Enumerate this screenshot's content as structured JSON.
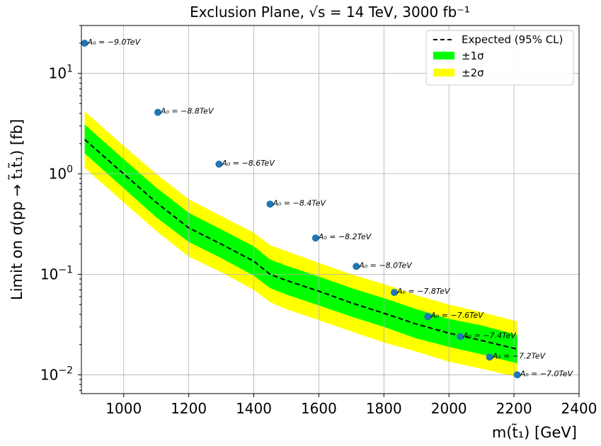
{
  "chart_data": {
    "type": "scatter",
    "title": "Exclusion Plane, √s = 14 TeV, 3000 fb⁻¹",
    "xlabel": "m(t̃₁) [GeV]",
    "ylabel": "Limit on σ(pp → t̃₁t̃₁) [fb]",
    "xlim": [
      870,
      2400
    ],
    "ylim": [
      0.0065,
      30
    ],
    "yscale": "log",
    "grid": true,
    "legend_position": "top-right",
    "x_ticks": [
      "1000",
      "1200",
      "1400",
      "1600",
      "1800",
      "2000",
      "2200",
      "2400"
    ],
    "y_ticks": [
      {
        "value": 0.01,
        "base": "10",
        "exp": "−2"
      },
      {
        "value": 0.1,
        "base": "10",
        "exp": "−1"
      },
      {
        "value": 1,
        "base": "10",
        "exp": "0"
      },
      {
        "value": 10,
        "base": "10",
        "exp": "1"
      }
    ],
    "legend": [
      {
        "label": "Expected (95% CL)",
        "style": "dashed",
        "color": "#000000"
      },
      {
        "label": "±1σ",
        "style": "fill",
        "color": "#00ff00"
      },
      {
        "label": "±2σ",
        "style": "fill",
        "color": "#ffff00"
      }
    ],
    "expected": {
      "x": [
        880,
        1000,
        1100,
        1200,
        1300,
        1400,
        1450,
        1500,
        1600,
        1700,
        1800,
        1900,
        2000,
        2100,
        2210
      ],
      "y": [
        2.2,
        1.0,
        0.52,
        0.29,
        0.2,
        0.135,
        0.1,
        0.087,
        0.068,
        0.052,
        0.041,
        0.032,
        0.026,
        0.022,
        0.018
      ]
    },
    "band_1sigma": {
      "x": [
        880,
        1000,
        1100,
        1200,
        1300,
        1400,
        1450,
        1500,
        1600,
        1700,
        1800,
        1900,
        2000,
        2100,
        2210
      ],
      "lower": [
        1.6,
        0.72,
        0.37,
        0.21,
        0.145,
        0.097,
        0.073,
        0.063,
        0.049,
        0.038,
        0.03,
        0.023,
        0.019,
        0.016,
        0.013
      ],
      "upper": [
        3.1,
        1.4,
        0.73,
        0.41,
        0.28,
        0.19,
        0.14,
        0.122,
        0.095,
        0.073,
        0.058,
        0.045,
        0.036,
        0.031,
        0.025
      ]
    },
    "band_2sigma": {
      "x": [
        880,
        1000,
        1100,
        1200,
        1300,
        1400,
        1450,
        1500,
        1600,
        1700,
        1800,
        1900,
        2000,
        2100,
        2210
      ],
      "lower": [
        1.15,
        0.52,
        0.27,
        0.15,
        0.105,
        0.07,
        0.053,
        0.045,
        0.035,
        0.027,
        0.021,
        0.017,
        0.0135,
        0.0115,
        0.0095
      ],
      "upper": [
        4.2,
        1.9,
        1.0,
        0.56,
        0.38,
        0.26,
        0.195,
        0.17,
        0.13,
        0.1,
        0.08,
        0.062,
        0.05,
        0.042,
        0.034
      ]
    },
    "points": [
      {
        "x": 880,
        "y": 20,
        "label": "A₀ = −9.0TeV"
      },
      {
        "x": 1105,
        "y": 4.1,
        "label": "A₀ = −8.8TeV"
      },
      {
        "x": 1293,
        "y": 1.25,
        "label": "A₀ = −8.6TeV"
      },
      {
        "x": 1450,
        "y": 0.5,
        "label": "A₀ = −8.4TeV"
      },
      {
        "x": 1590,
        "y": 0.23,
        "label": "A₀ = −8.2TeV"
      },
      {
        "x": 1715,
        "y": 0.12,
        "label": "A₀ = −8.0TeV"
      },
      {
        "x": 1832,
        "y": 0.066,
        "label": "A₀ = −7.8TeV"
      },
      {
        "x": 1935,
        "y": 0.038,
        "label": "A₀ = −7.6TeV"
      },
      {
        "x": 2035,
        "y": 0.024,
        "label": "A₀ = −7.4TeV"
      },
      {
        "x": 2125,
        "y": 0.015,
        "label": "A₀ = −7.2TeV"
      },
      {
        "x": 2210,
        "y": 0.01,
        "label": "A₀ = −7.0TeV"
      }
    ],
    "point_color": "#1f77b4"
  }
}
